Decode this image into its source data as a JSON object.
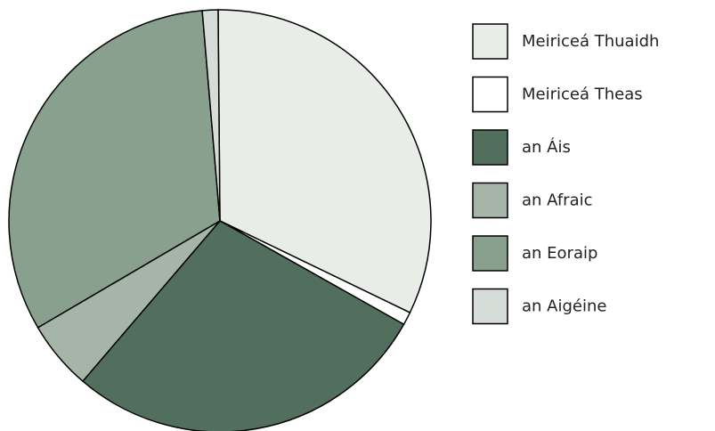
{
  "chart_data": {
    "type": "pie",
    "categories": [
      "Meiriceá Thuaidh",
      "Meiriceá Theas",
      "an Áis",
      "an Afraic",
      "an Eoraip",
      "an Aigéine"
    ],
    "values": [
      32.3,
      1.0,
      28.1,
      5.3,
      32.1,
      1.2
    ],
    "colors": [
      "#e8ede8",
      "#ffffff",
      "#526e5c",
      "#a5b5a8",
      "#8aa08f",
      "#d6ddd8"
    ],
    "legend": "right"
  }
}
